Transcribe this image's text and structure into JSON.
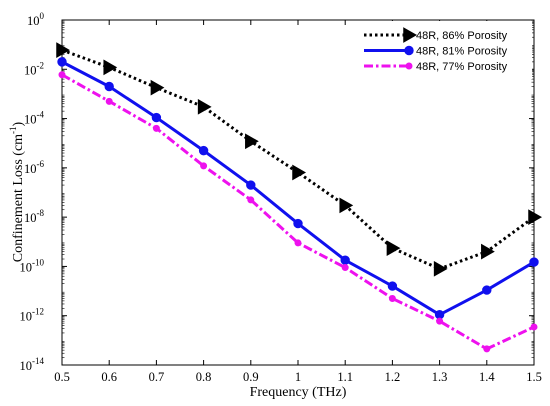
{
  "chart_data": {
    "type": "line",
    "xlabel": "Frequency (THz)",
    "ylabel": "Confinement Loss (cm⁻¹)",
    "ylabel_main": "Confinement Loss (cm",
    "ylabel_sup": "-1",
    "ylabel_close": ")",
    "yscale": "log",
    "xlim": [
      0.5,
      1.5
    ],
    "ylim_exponent": [
      -14,
      0
    ],
    "x_ticks": [
      "0.5",
      "0.6",
      "0.7",
      "0.8",
      "0.9",
      "1",
      "1.1",
      "1.2",
      "1.3",
      "1.4",
      "1.5"
    ],
    "y_tick_exponents": [
      "0",
      "-2",
      "-4",
      "-6",
      "-8",
      "-10",
      "-12",
      "-14"
    ],
    "y_tick_base": "10",
    "grid": false,
    "legend_position": "top-right",
    "x": [
      0.5,
      0.6,
      0.7,
      0.8,
      0.9,
      1.0,
      1.1,
      1.2,
      1.3,
      1.4,
      1.5
    ],
    "series": [
      {
        "name": "48R, 86% Porosity",
        "color": "#000000",
        "line_style": "dotted",
        "marker": "triangle-right",
        "values": [
          0.06,
          0.012,
          0.0018,
          0.0003,
          1.2e-05,
          6.5e-07,
          3e-08,
          5.5e-10,
          8e-11,
          4e-10,
          1e-08
        ]
      },
      {
        "name": "48R, 81% Porosity",
        "color": "#1010ee",
        "line_style": "solid",
        "marker": "circle",
        "values": [
          0.02,
          0.002,
          0.00011,
          5e-06,
          2e-07,
          5.5e-09,
          1.8e-10,
          1.6e-11,
          1.1e-12,
          1.1e-11,
          1.5e-10
        ]
      },
      {
        "name": "48R, 77% Porosity",
        "color": "#ee11ee",
        "line_style": "dash-dot",
        "marker": "circle-small",
        "values": [
          0.006,
          0.0005,
          4e-05,
          1.2e-06,
          5e-08,
          9e-10,
          9e-11,
          5e-12,
          6e-13,
          4.5e-14,
          3.5e-13
        ]
      }
    ]
  }
}
